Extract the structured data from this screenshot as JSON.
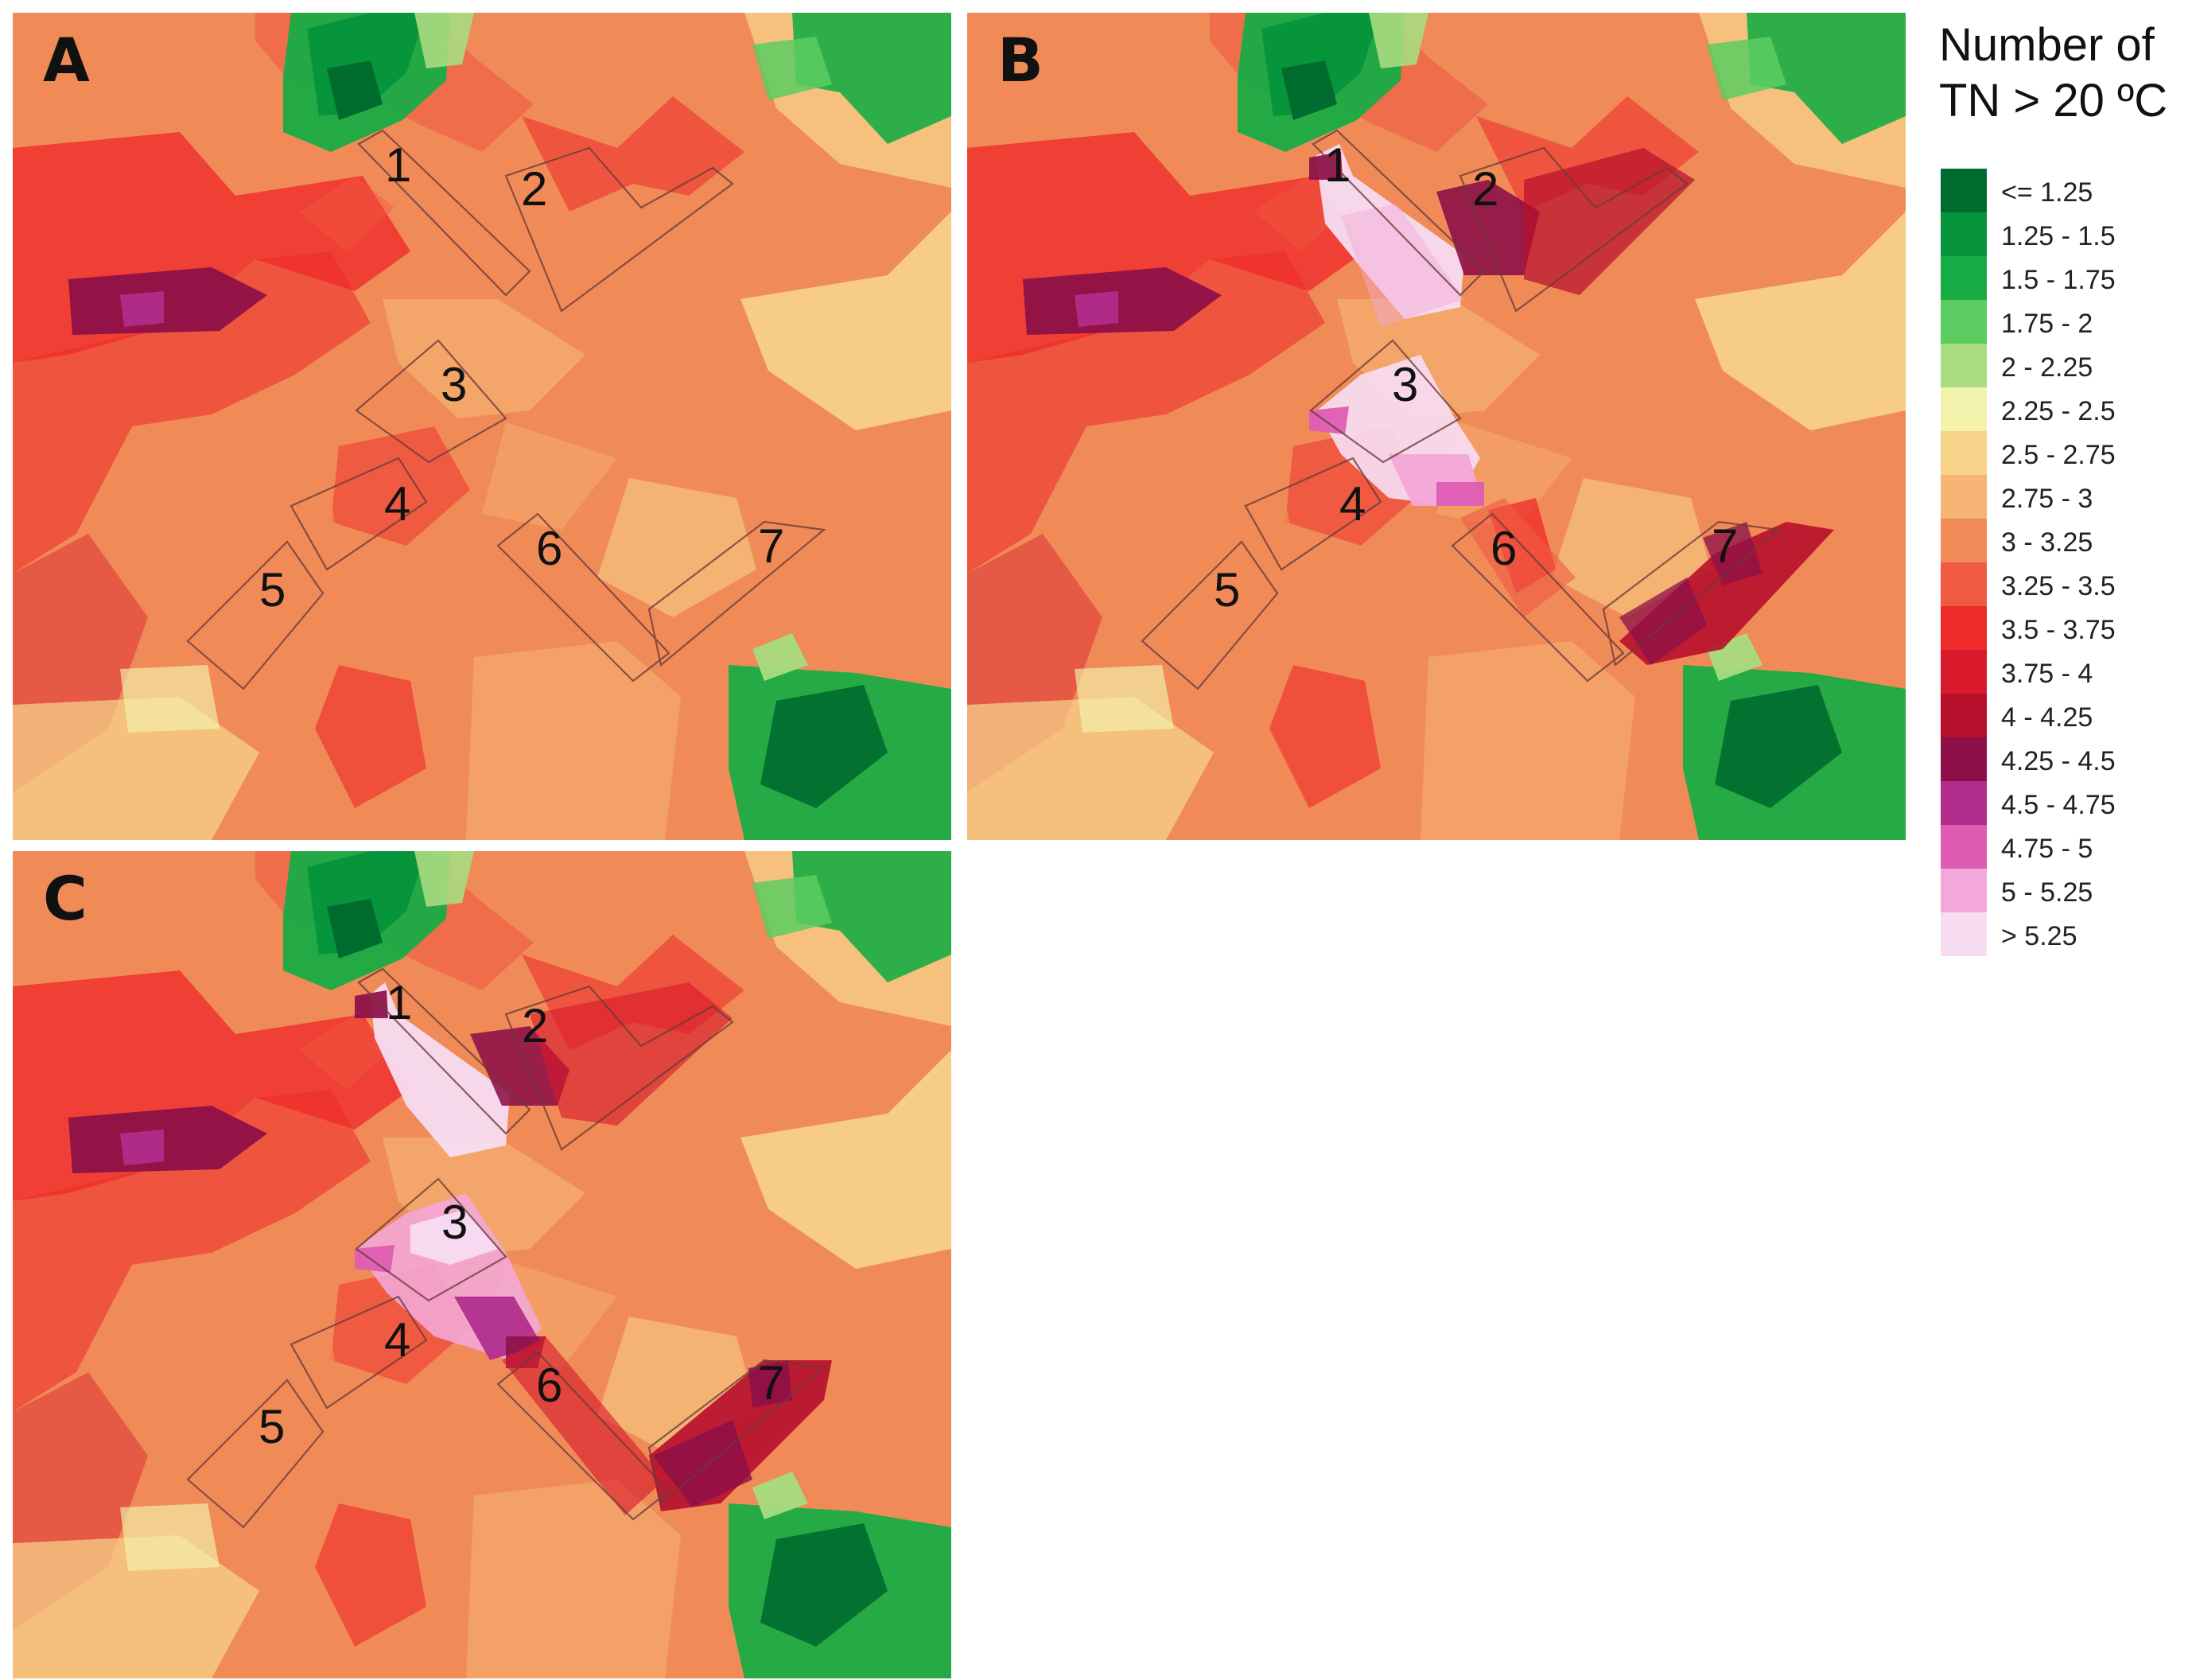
{
  "figure": {
    "panels": [
      {
        "letter": "A",
        "zone_labels": [
          "1",
          "2",
          "3",
          "4",
          "5",
          "6",
          "7"
        ]
      },
      {
        "letter": "B",
        "zone_labels": [
          "1",
          "2",
          "3",
          "4",
          "5",
          "6",
          "7"
        ]
      },
      {
        "letter": "C",
        "zone_labels": [
          "1",
          "2",
          "3",
          "4",
          "5",
          "6",
          "7"
        ]
      }
    ],
    "legend": {
      "title_line_1": "Number of",
      "title_line_2": "TN > 20 ºC",
      "items": [
        {
          "label": "<= 1.25",
          "color": "#006b2e"
        },
        {
          "label": "1.25 - 1.5",
          "color": "#05933b"
        },
        {
          "label": "1.5 - 1.75",
          "color": "#18ac44"
        },
        {
          "label": "1.75 - 2",
          "color": "#5ccc62"
        },
        {
          "label": "2 - 2.25",
          "color": "#a8dc80"
        },
        {
          "label": "2.25 - 2.5",
          "color": "#f2f2ad"
        },
        {
          "label": "2.5 - 2.75",
          "color": "#f7d38a"
        },
        {
          "label": "2.75 - 3",
          "color": "#f7b474"
        },
        {
          "label": "3 - 3.25",
          "color": "#f08b58"
        },
        {
          "label": "3.25 - 3.5",
          "color": "#f05a42"
        },
        {
          "label": "3.5 - 3.75",
          "color": "#ef2a2a"
        },
        {
          "label": "3.75 - 4",
          "color": "#d9192c"
        },
        {
          "label": "4 - 4.25",
          "color": "#b7102c"
        },
        {
          "label": "4.25 - 4.5",
          "color": "#8c0f48"
        },
        {
          "label": "4.5 - 4.75",
          "color": "#b02c8b"
        },
        {
          "label": "4.75 - 5",
          "color": "#de5db3"
        },
        {
          "label": "5 - 5.25",
          "color": "#f2a8d8"
        },
        {
          "label": "> 5.25",
          "color": "#f7dcf2"
        }
      ]
    },
    "colors": {
      "green_dark": "#006b2e",
      "green": "#18ac44",
      "light_green": "#a8dc80",
      "yellow": "#f2f2ad",
      "orange": "#f7b474",
      "salmon": "#f08b58",
      "red": "#ef2a2a",
      "dark_red": "#b7102c",
      "purple": "#8c0f48",
      "pink": "#f2a8d8",
      "pale_pink": "#f7dcf2"
    }
  }
}
